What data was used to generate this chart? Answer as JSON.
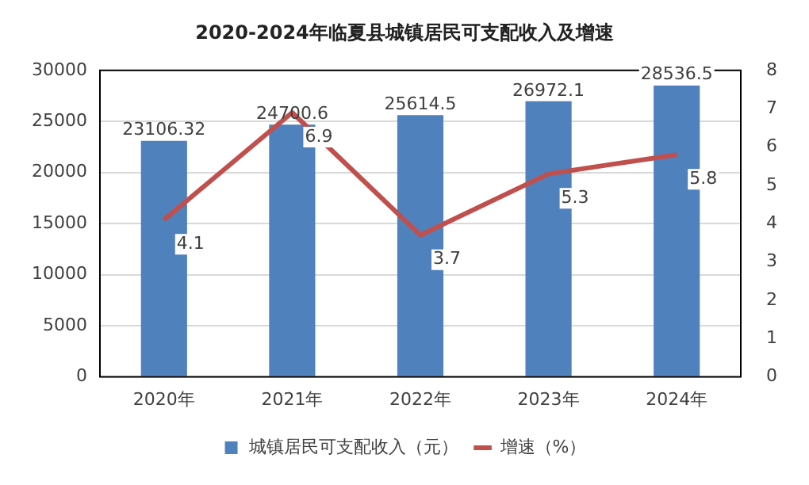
{
  "chart_data": {
    "type": "bar",
    "title": "2020-2024年临夏县城镇居民可支配收入及增速",
    "categories": [
      "2020年",
      "2021年",
      "2022年",
      "2023年",
      "2024年"
    ],
    "series": [
      {
        "name": "城镇居民可支配收入（元）",
        "color": "#4f81bd",
        "values": [
          23106.32,
          24700.6,
          25614.5,
          26972.1,
          28536.5
        ]
      },
      {
        "name": "增速（%）",
        "type": "line",
        "axis": "y2",
        "color": "#c0504d",
        "values": [
          4.1,
          6.9,
          3.7,
          5.3,
          5.8
        ],
        "marker": "none"
      }
    ],
    "data_labels": true,
    "ylim": [
      0,
      30000
    ],
    "yticks": [
      0,
      5000,
      10000,
      15000,
      20000,
      25000,
      30000
    ],
    "y2lim": [
      0,
      8
    ],
    "y2ticks": [
      0,
      1,
      2,
      3,
      4,
      5,
      6,
      7,
      8
    ],
    "grid": "y",
    "legend": "bottom"
  }
}
